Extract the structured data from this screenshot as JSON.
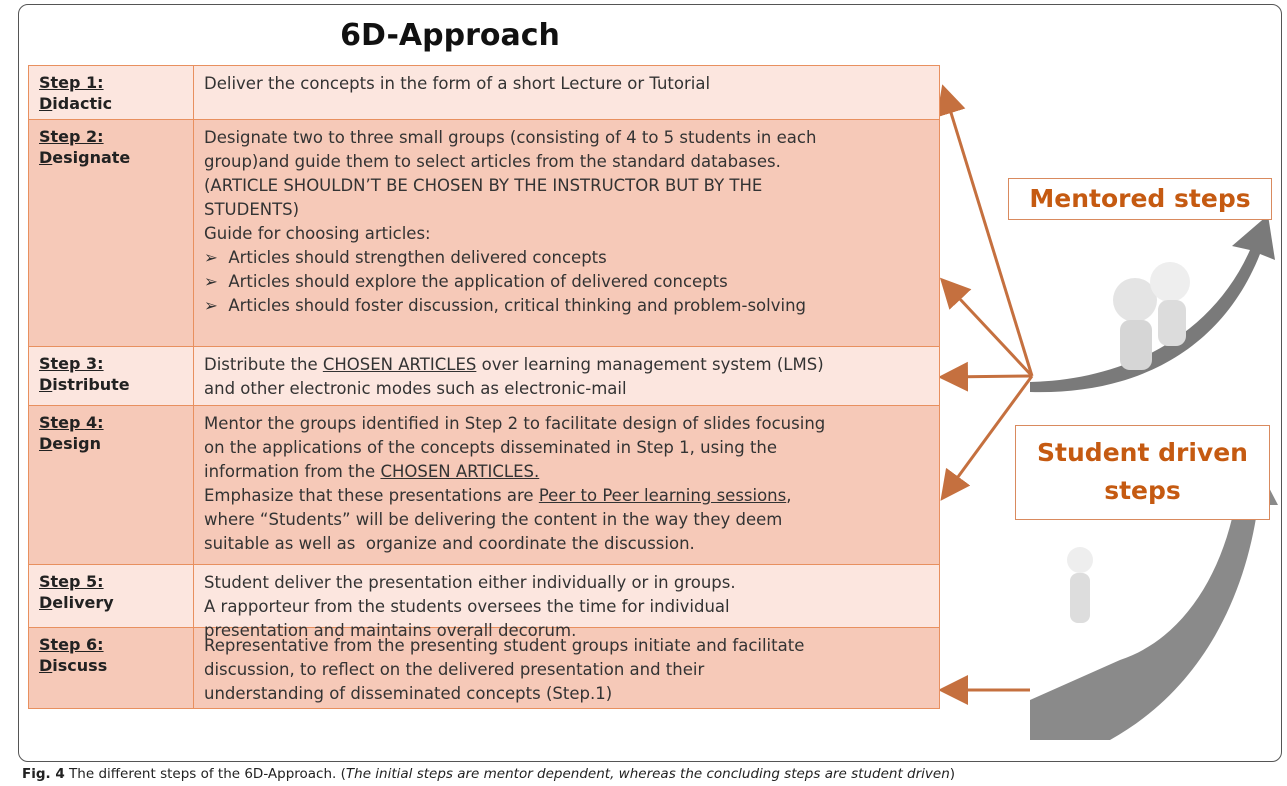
{
  "title": "6D-Approach",
  "steps": [
    {
      "step": "Step 1:",
      "name": "Didactic",
      "color": "#fce6df",
      "lines": [
        [
          {
            "text": "Deliver the concepts in the form of a short Lecture or Tutorial"
          }
        ]
      ]
    },
    {
      "step": "Step 2:",
      "name": "Designate",
      "color": "#f6c9b8",
      "lines": [
        [
          {
            "text": "Designate two to three small groups (consisting of 4 to 5 students in each"
          }
        ],
        [
          {
            "text": "group)and guide them to select articles from the standard databases."
          }
        ],
        [
          {
            "text": "(ARTICLE SHOULDN’T BE CHOSEN BY THE INSTRUCTOR BUT BY THE"
          }
        ],
        [
          {
            "text": "STUDENTS)"
          }
        ],
        [
          {
            "text": "Guide for choosing articles:"
          }
        ],
        [
          {
            "text": "➢  Articles should strengthen delivered concepts"
          }
        ],
        [
          {
            "text": "➢  Articles should explore the application of delivered concepts"
          }
        ],
        [
          {
            "text": "➢  Articles should foster discussion, critical thinking and problem-solving"
          }
        ]
      ]
    },
    {
      "step": "Step 3:",
      "name": "Distribute",
      "color": "#fce6df",
      "lines": [
        [
          {
            "text": "Distribute the "
          },
          {
            "text": "CHOSEN ARTICLES",
            "underline": true
          },
          {
            "text": " over learning management system (LMS)"
          }
        ],
        [
          {
            "text": "and other electronic modes such as electronic-mail"
          }
        ]
      ]
    },
    {
      "step": "Step 4:",
      "name": "Design",
      "color": "#f6c9b8",
      "lines": [
        [
          {
            "text": "Mentor the groups identified in Step 2 to facilitate design of slides focusing"
          }
        ],
        [
          {
            "text": "on the applications of the concepts disseminated in Step 1, using the"
          }
        ],
        [
          {
            "text": "information from the "
          },
          {
            "text": "CHOSEN ARTICLES.",
            "underline": true
          }
        ],
        [
          {
            "text": "Emphasize that these presentations are "
          },
          {
            "text": "Peer to Peer learning sessions",
            "underline": true
          },
          {
            "text": ","
          }
        ],
        [
          {
            "text": "where “Students” will be delivering the content in the way they deem"
          }
        ],
        [
          {
            "text": "suitable as well as  organize and coordinate the discussion."
          }
        ]
      ]
    },
    {
      "step": "Step 5:",
      "name": "Delivery",
      "color": "#fce6df",
      "lines": [
        [
          {
            "text": "Student deliver the presentation either individually or in groups."
          }
        ],
        [
          {
            "text": "A rapporteur from the students oversees the time for individual"
          }
        ],
        [
          {
            "text": "presentation and maintains overall decorum."
          }
        ]
      ]
    },
    {
      "step": "Step 6:",
      "name": "Discuss",
      "color": "#f6c9b8",
      "lines": [
        [
          {
            "text": "Representative from the presenting student groups initiate and facilitate"
          }
        ],
        [
          {
            "text": "discussion, to reflect on the delivered presentation and their"
          }
        ],
        [
          {
            "text": "understanding of disseminated concepts (Step.1)"
          }
        ]
      ]
    }
  ],
  "mentored_label": "Mentored steps",
  "student_label": "Student driven steps",
  "caption": [
    {
      "text": "Fig. 4",
      "bold": true
    },
    {
      "text": " The different steps of the 6D-Approach. ("
    },
    {
      "text": "The initial steps are mentor dependent, whereas the concluding steps are student driven",
      "italic": true
    },
    {
      "text": ")"
    }
  ]
}
